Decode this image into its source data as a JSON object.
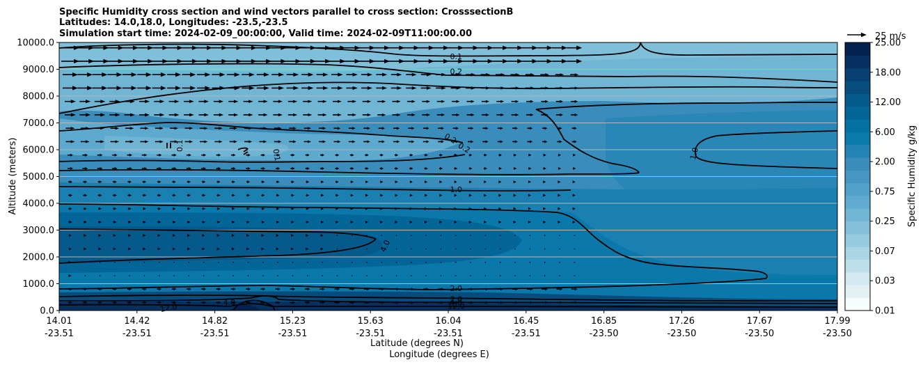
{
  "chart_data": {
    "type": "heatmap",
    "title_lines": [
      "Specific Humidity cross section and wind vectors parallel to cross section: CrosssectionB",
      "Latitudes: 14.0,18.0, Longitudes: -23.5,-23.5",
      "Simulation start time: 2024-02-09_00:00:00, Valid time: 2024-02-09T11:00:00.00"
    ],
    "ylabel": "Altitude (meters)",
    "xlabel_lat": "Latitude (degrees N)",
    "xlabel_lon": "Longitude (degrees E)",
    "ylim": [
      0,
      10000
    ],
    "y_ticks": [
      "0.0",
      "1000.0",
      "2000.0",
      "3000.0",
      "4000.0",
      "5000.0",
      "6000.0",
      "7000.0",
      "8000.0",
      "9000.0",
      "10000.0"
    ],
    "x_ticks": [
      {
        "lat": "14.01",
        "lon": "-23.51"
      },
      {
        "lat": "14.42",
        "lon": "-23.51"
      },
      {
        "lat": "14.82",
        "lon": "-23.51"
      },
      {
        "lat": "15.23",
        "lon": "-23.51"
      },
      {
        "lat": "15.63",
        "lon": "-23.51"
      },
      {
        "lat": "16.04",
        "lon": "-23.51"
      },
      {
        "lat": "16.45",
        "lon": "-23.51"
      },
      {
        "lat": "16.85",
        "lon": "-23.50"
      },
      {
        "lat": "17.26",
        "lon": "-23.50"
      },
      {
        "lat": "17.67",
        "lon": "-23.50"
      },
      {
        "lat": "17.99",
        "lon": "-23.50"
      }
    ],
    "colorbar": {
      "label": "Specific Humidity g/kg",
      "tick_labels": [
        "0.01",
        "0.03",
        "0.07",
        "0.25",
        "0.75",
        "2.00",
        "6.00",
        "12.00",
        "18.00",
        "25.00"
      ],
      "colors": [
        "#f7fcfd",
        "#e3f1f5",
        "#d2e9f0",
        "#bddfeb",
        "#a9d5e5",
        "#97cbe0",
        "#85c0db",
        "#72b6d5",
        "#60abcf",
        "#51a1c9",
        "#4597c2",
        "#3a8dbb",
        "#2383b4",
        "#0b7aad",
        "#0371a3",
        "#046598",
        "#05598b",
        "#064d7e",
        "#073f70",
        "#06305f",
        "#042150"
      ]
    },
    "wind_reference": "25 m/s",
    "contour_labels": [
      {
        "text": "0.1",
        "lat": 16.04,
        "alt": 9450,
        "rot": 0
      },
      {
        "text": "0.2",
        "lat": 16.04,
        "alt": 8900,
        "rot": 0
      },
      {
        "text": "0.1",
        "lat": 14.63,
        "alt": 6150,
        "rot": -90
      },
      {
        "text": "0.1",
        "lat": 15.12,
        "alt": 5800,
        "rot": 80
      },
      {
        "text": "0.2",
        "lat": 16.01,
        "alt": 6400,
        "rot": 30
      },
      {
        "text": "0.2",
        "lat": 16.08,
        "alt": 6050,
        "rot": 30
      },
      {
        "text": "1.0",
        "lat": 17.26,
        "alt": 5850,
        "rot": -75
      },
      {
        "text": "1.0",
        "lat": 16.04,
        "alt": 4500,
        "rot": 0
      },
      {
        "text": "4.0",
        "lat": 15.68,
        "alt": 2400,
        "rot": -65
      },
      {
        "text": "2.0",
        "lat": 16.04,
        "alt": 800,
        "rot": 0
      },
      {
        "text": "4.0",
        "lat": 14.88,
        "alt": 280,
        "rot": 0
      },
      {
        "text": "12.0",
        "lat": 14.57,
        "alt": 80,
        "rot": -10
      },
      {
        "text": "2.0",
        "lat": 16.04,
        "alt": 400,
        "rot": 0
      },
      {
        "text": "4.0",
        "lat": 16.04,
        "alt": 270,
        "rot": 0
      },
      {
        "text": "12.0",
        "lat": 16.04,
        "alt": 140,
        "rot": 0
      }
    ],
    "contour_levels_g_kg": [
      0.1,
      0.2,
      1.0,
      2.0,
      4.0,
      12.0
    ]
  }
}
